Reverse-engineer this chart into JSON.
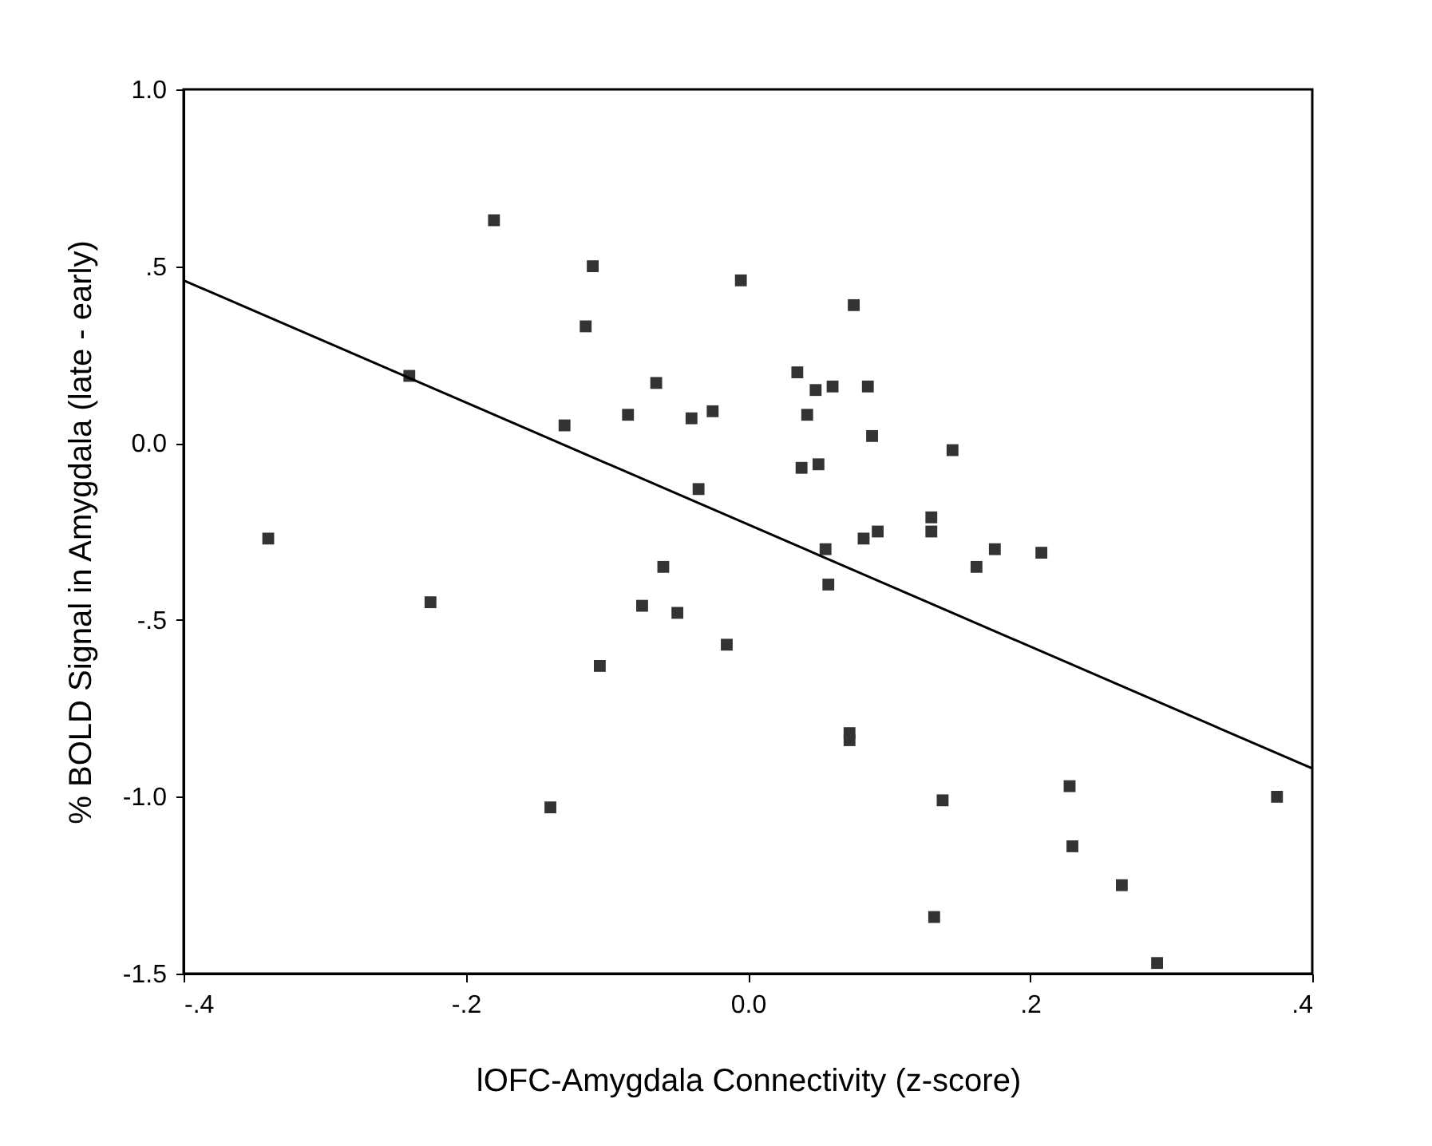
{
  "chart_data": {
    "type": "scatter",
    "xlabel": "lOFC-Amygdala Connectivity (z-score)",
    "ylabel": "% BOLD Signal in Amygdala  (late - early)",
    "xlim": [
      -0.4,
      0.4
    ],
    "ylim": [
      -1.5,
      1.0
    ],
    "xticks": [
      {
        "value": -0.4,
        "label": "-.4"
      },
      {
        "value": -0.2,
        "label": "-.2"
      },
      {
        "value": 0,
        "label": "0.0"
      },
      {
        "value": 0.2,
        "label": ".2"
      },
      {
        "value": 0.4,
        "label": ".4"
      }
    ],
    "yticks": [
      {
        "value": -1.5,
        "label": "-1.5"
      },
      {
        "value": -1.0,
        "label": "-1.0"
      },
      {
        "value": -0.5,
        "label": "-.5"
      },
      {
        "value": 0,
        "label": "0.0"
      },
      {
        "value": 0.5,
        "label": ".5"
      },
      {
        "value": 1.0,
        "label": "1.0"
      }
    ],
    "grid": false,
    "series": [
      {
        "color": "#333333",
        "marker": "square",
        "x": [
          -0.18,
          -0.11,
          -0.115,
          -0.24,
          -0.005,
          0.075,
          -0.065,
          -0.13,
          -0.085,
          -0.04,
          -0.025,
          -0.035,
          -0.34,
          -0.225,
          -0.06,
          -0.075,
          -0.05,
          -0.105,
          -0.015,
          -0.14,
          0.035,
          0.048,
          0.06,
          0.042,
          0.085,
          0.088,
          0.038,
          0.05,
          0.055,
          0.092,
          0.082,
          0.057,
          0.072,
          0.072,
          0.13,
          0.13,
          0.145,
          0.175,
          0.162,
          0.208,
          0.138,
          0.228,
          0.23,
          0.265,
          0.132,
          0.29,
          0.375
        ],
        "values": [
          0.63,
          0.5,
          0.33,
          0.19,
          0.46,
          0.39,
          0.17,
          0.05,
          0.08,
          0.07,
          0.09,
          -0.13,
          -0.27,
          -0.45,
          -0.35,
          -0.46,
          -0.48,
          -0.63,
          -0.57,
          -1.03,
          0.2,
          0.15,
          0.16,
          0.08,
          0.16,
          0.02,
          -0.07,
          -0.06,
          -0.3,
          -0.25,
          -0.27,
          -0.4,
          -0.82,
          -0.84,
          -0.21,
          -0.25,
          -0.02,
          -0.3,
          -0.35,
          -0.31,
          -1.01,
          -0.97,
          -1.14,
          -1.25,
          -1.34,
          -1.47,
          -1.0
        ]
      },
      {
        "type": "line",
        "color": "#000000",
        "marker": "none",
        "x": [
          -0.4,
          0.4
        ],
        "values": [
          0.46,
          -0.92
        ]
      }
    ]
  }
}
